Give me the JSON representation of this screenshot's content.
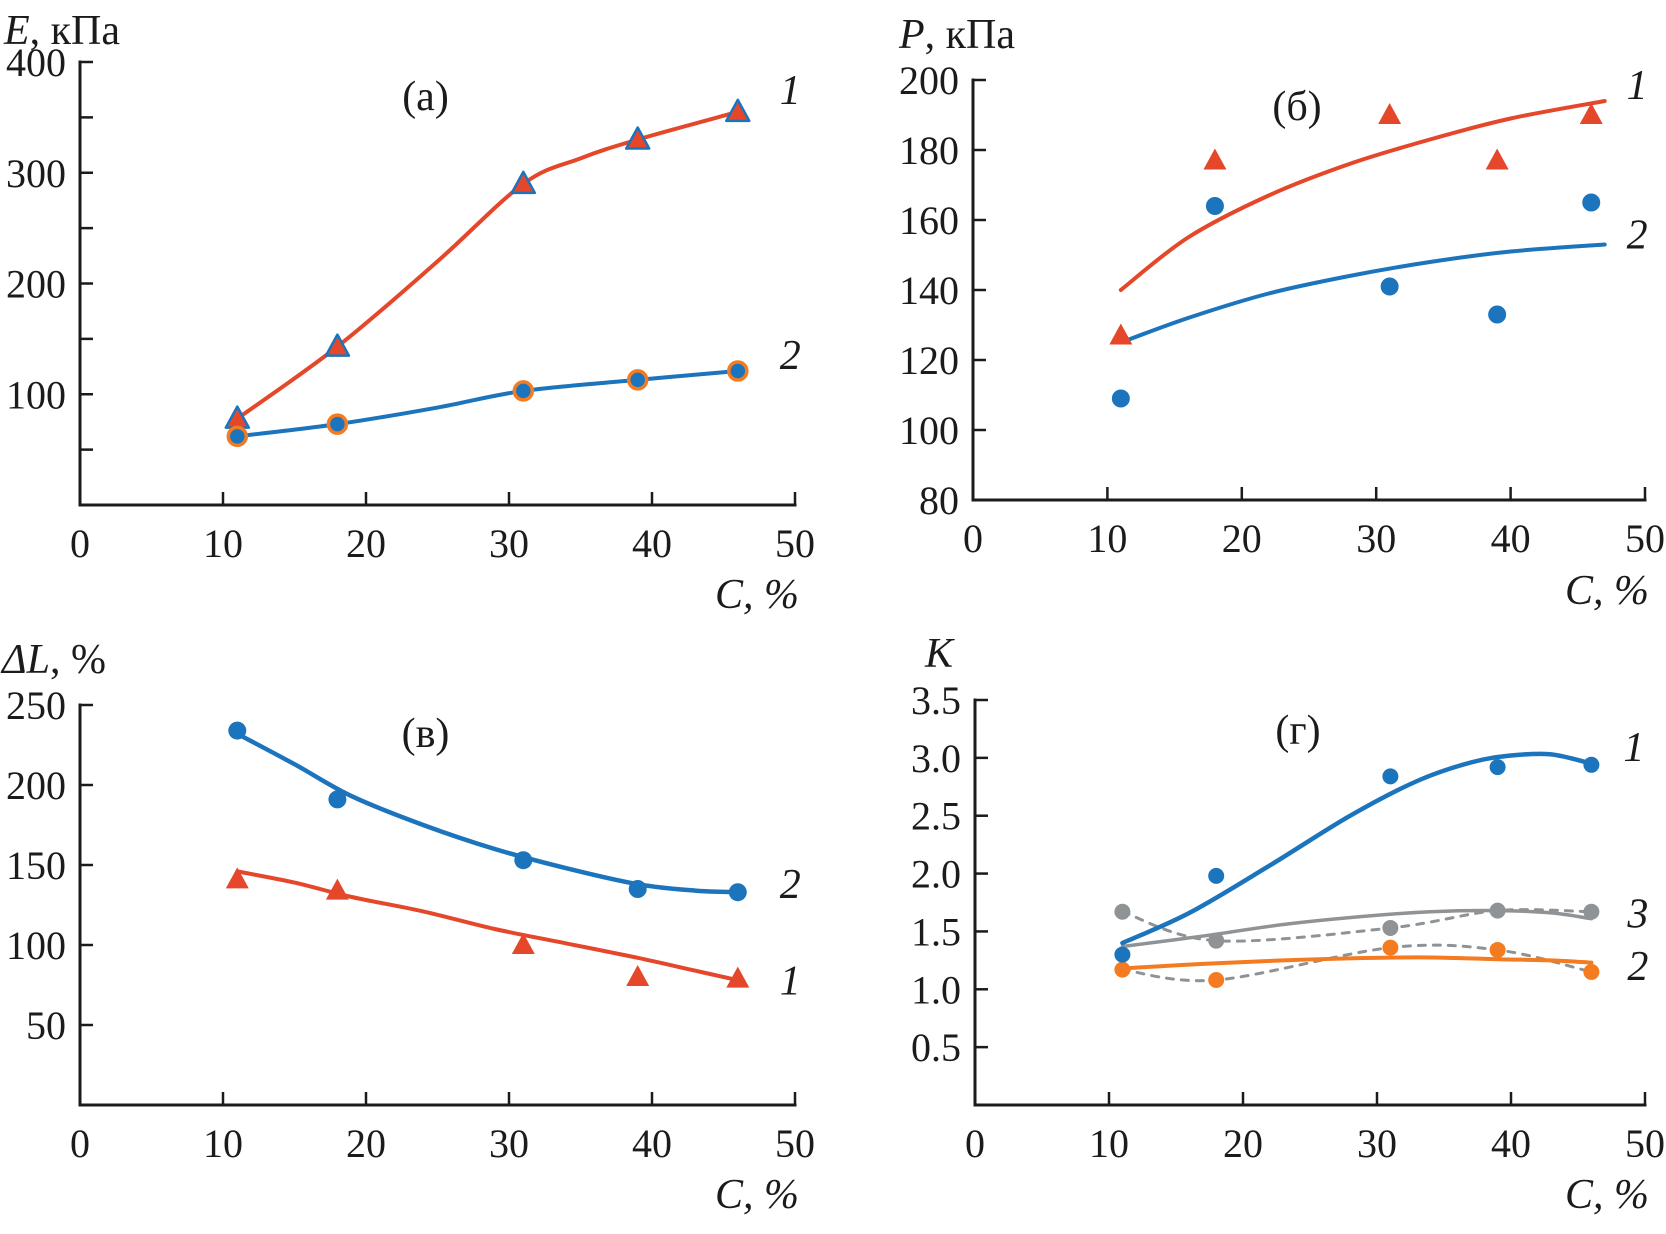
{
  "figure": {
    "background": "#ffffff",
    "description": "Four-panel scientific figure: mechanical properties vs filler concentration C, %"
  },
  "colors": {
    "red": "#e5472a",
    "blue": "#1c75bc",
    "orange": "#f47b20",
    "gray": "#8f9396",
    "axis": "#1b1b1b"
  },
  "chart_data": [
    {
      "id": "a",
      "type": "line",
      "tag": "(a)",
      "ylabel_var": "E",
      "ylabel_rest": ", кПа",
      "xlabel": "C, %",
      "x": {
        "min": 0,
        "max": 50,
        "ticks": [
          10,
          20,
          30,
          40,
          50
        ],
        "labels": [
          [
            0,
            "0"
          ],
          [
            10,
            "10"
          ],
          [
            20,
            "20"
          ],
          [
            30,
            "30"
          ],
          [
            40,
            "40"
          ],
          [
            50,
            "50"
          ]
        ]
      },
      "y": {
        "min": 0,
        "max": 400,
        "ticks": [
          50,
          100,
          150,
          200,
          250,
          300,
          350,
          400
        ],
        "labels": [
          [
            100,
            "100"
          ],
          [
            200,
            "200"
          ],
          [
            300,
            "300"
          ],
          [
            400,
            "400"
          ]
        ]
      },
      "series": [
        {
          "name": "series-1",
          "color": "red",
          "width": 4,
          "curve": [
            [
              11,
              78
            ],
            [
              18,
              143
            ],
            [
              25,
              220
            ],
            [
              31,
              290
            ],
            [
              35,
              313
            ],
            [
              39,
              330
            ],
            [
              46,
              355
            ]
          ],
          "points": [
            [
              11,
              78
            ],
            [
              18,
              143
            ],
            [
              31,
              290
            ],
            [
              39,
              330
            ],
            [
              46,
              355
            ]
          ],
          "marker": "triangle",
          "marker_fill": "red",
          "marker_stroke": "blue",
          "marker_stroke_width": 2.5,
          "label": {
            "text": "1",
            "x": 46,
            "y": 355,
            "dx": 42,
            "dy": -8
          }
        },
        {
          "name": "series-2",
          "color": "blue",
          "width": 4,
          "curve": [
            [
              11,
              62
            ],
            [
              18,
              73
            ],
            [
              25,
              88
            ],
            [
              31,
              103
            ],
            [
              39,
              113
            ],
            [
              46,
              121
            ]
          ],
          "points": [
            [
              11,
              62
            ],
            [
              18,
              73
            ],
            [
              31,
              103
            ],
            [
              39,
              113
            ],
            [
              46,
              121
            ]
          ],
          "marker": "circle",
          "marker_fill": "blue",
          "marker_stroke": "orange",
          "marker_stroke_width": 3.5,
          "marker_size": 9,
          "label": {
            "text": "2",
            "x": 46,
            "y": 121,
            "dx": 42,
            "dy": -2
          }
        }
      ]
    },
    {
      "id": "b",
      "type": "scatter",
      "tag": "(б)",
      "ylabel_var": "P",
      "ylabel_rest": ", кПа",
      "xlabel": "C, %",
      "x": {
        "min": 0,
        "max": 50,
        "ticks": [
          10,
          20,
          30,
          40,
          50
        ],
        "labels": [
          [
            0,
            "0"
          ],
          [
            10,
            "10"
          ],
          [
            20,
            "20"
          ],
          [
            30,
            "30"
          ],
          [
            40,
            "40"
          ],
          [
            50,
            "50"
          ]
        ]
      },
      "y": {
        "min": 80,
        "max": 200,
        "ticks": [
          100,
          120,
          140,
          160,
          180,
          200
        ],
        "labels": [
          [
            80,
            "80"
          ],
          [
            100,
            "100"
          ],
          [
            120,
            "120"
          ],
          [
            140,
            "140"
          ],
          [
            160,
            "160"
          ],
          [
            180,
            "180"
          ],
          [
            200,
            "200"
          ]
        ]
      },
      "series": [
        {
          "name": "series-1-fit",
          "color": "red",
          "width": 4,
          "curve": [
            [
              11,
              140
            ],
            [
              16,
              155
            ],
            [
              22,
              167
            ],
            [
              28,
              176
            ],
            [
              34,
              183
            ],
            [
              40,
              189
            ],
            [
              47,
              194
            ]
          ],
          "points": [
            [
              11,
              127
            ],
            [
              18,
              177
            ],
            [
              31,
              190
            ],
            [
              39,
              177
            ],
            [
              46,
              190
            ]
          ],
          "marker": "triangle",
          "marker_fill": "red",
          "marker_stroke": null,
          "label": {
            "text": "1",
            "x": 47,
            "y": 194,
            "dx": 22,
            "dy": -2
          }
        },
        {
          "name": "series-2-fit",
          "color": "blue",
          "width": 4,
          "curve": [
            [
              11,
              125
            ],
            [
              16,
              132
            ],
            [
              22,
              139
            ],
            [
              28,
              144
            ],
            [
              34,
              148
            ],
            [
              40,
              151
            ],
            [
              47,
              153
            ]
          ],
          "points": [
            [
              11,
              109
            ],
            [
              18,
              164
            ],
            [
              31,
              141
            ],
            [
              39,
              133
            ],
            [
              46,
              165
            ]
          ],
          "marker": "circle",
          "marker_fill": "blue",
          "marker_stroke": null,
          "marker_size": 9,
          "label": {
            "text": "2",
            "x": 47,
            "y": 153,
            "dx": 22,
            "dy": 4
          }
        }
      ]
    },
    {
      "id": "v",
      "type": "line",
      "tag": "(в)",
      "ylabel_var": "ΔL",
      "ylabel_rest": ", %",
      "xlabel": "C, %",
      "x": {
        "min": 0,
        "max": 50,
        "ticks": [
          10,
          20,
          30,
          40,
          50
        ],
        "labels": [
          [
            0,
            "0"
          ],
          [
            10,
            "10"
          ],
          [
            20,
            "20"
          ],
          [
            30,
            "30"
          ],
          [
            40,
            "40"
          ],
          [
            50,
            "50"
          ]
        ]
      },
      "y": {
        "min": 0,
        "max": 250,
        "ticks": [
          50,
          100,
          150,
          200,
          250
        ],
        "labels": [
          [
            50,
            "50"
          ],
          [
            100,
            "100"
          ],
          [
            150,
            "150"
          ],
          [
            200,
            "200"
          ],
          [
            250,
            "250"
          ]
        ]
      },
      "series": [
        {
          "name": "series-2-fit",
          "color": "blue",
          "width": 4.5,
          "curve": [
            [
              11,
              232
            ],
            [
              15,
              213
            ],
            [
              19,
              193
            ],
            [
              24,
              175
            ],
            [
              29,
              160
            ],
            [
              34,
              148
            ],
            [
              39,
              138
            ],
            [
              43,
              134
            ],
            [
              46,
              133
            ]
          ],
          "points": [
            [
              11,
              234
            ],
            [
              18,
              191
            ],
            [
              31,
              153
            ],
            [
              39,
              135
            ],
            [
              46,
              133
            ]
          ],
          "marker": "circle",
          "marker_fill": "blue",
          "marker_stroke": null,
          "marker_size": 9,
          "label": {
            "text": "2",
            "x": 46,
            "y": 133,
            "dx": 42,
            "dy": 6
          }
        },
        {
          "name": "series-1-fit",
          "color": "red",
          "width": 4,
          "curve": [
            [
              11,
              146
            ],
            [
              15,
              139
            ],
            [
              19,
              130
            ],
            [
              24,
              121
            ],
            [
              29,
              110
            ],
            [
              34,
              101
            ],
            [
              39,
              92
            ],
            [
              43,
              84
            ],
            [
              46,
              78
            ]
          ],
          "points": [
            [
              11,
              141
            ],
            [
              18,
              134
            ],
            [
              31,
              100
            ],
            [
              39,
              80
            ],
            [
              46,
              79
            ]
          ],
          "marker": "triangle",
          "marker_fill": "red",
          "marker_stroke": null,
          "label": {
            "text": "1",
            "x": 46,
            "y": 79,
            "dx": 42,
            "dy": 16
          }
        }
      ]
    },
    {
      "id": "g",
      "type": "line",
      "tag": "(г)",
      "ylabel_var": "K",
      "ylabel_rest": "",
      "xlabel": "C, %",
      "x": {
        "min": 0,
        "max": 50,
        "ticks": [
          10,
          20,
          30,
          40,
          50
        ],
        "labels": [
          [
            0,
            "0"
          ],
          [
            10,
            "10"
          ],
          [
            20,
            "20"
          ],
          [
            30,
            "30"
          ],
          [
            40,
            "40"
          ],
          [
            50,
            "50"
          ]
        ]
      },
      "y": {
        "min": 0,
        "max": 3.5,
        "ticks": [
          0.5,
          1,
          1.5,
          2,
          2.5,
          3,
          3.5
        ],
        "labels": [
          [
            0.5,
            "0.5"
          ],
          [
            1,
            "1.0"
          ],
          [
            1.5,
            "1.5"
          ],
          [
            2,
            "2.0"
          ],
          [
            2.5,
            "2.5"
          ],
          [
            3,
            "3.0"
          ],
          [
            3.5,
            "3.5"
          ]
        ]
      },
      "series": [
        {
          "name": "series-3-dashed",
          "color": "gray",
          "width": 3,
          "dash": true,
          "curve": [
            [
              11,
              1.67
            ],
            [
              18,
              1.42
            ],
            [
              31,
              1.53
            ],
            [
              39,
              1.68
            ],
            [
              46,
              1.67
            ]
          ],
          "points": []
        },
        {
          "name": "series-2-dashed",
          "color": "gray",
          "width": 3,
          "dash": true,
          "curve": [
            [
              11,
              1.17
            ],
            [
              18,
              1.08
            ],
            [
              31,
              1.36
            ],
            [
              39,
              1.34
            ],
            [
              46,
              1.15
            ]
          ],
          "points": []
        },
        {
          "name": "series-3-fit",
          "color": "gray",
          "width": 3.5,
          "curve": [
            [
              11,
              1.37
            ],
            [
              17,
              1.46
            ],
            [
              23,
              1.56
            ],
            [
              29,
              1.63
            ],
            [
              34,
              1.67
            ],
            [
              39,
              1.68
            ],
            [
              43,
              1.66
            ],
            [
              46,
              1.61
            ]
          ],
          "points": [
            [
              11,
              1.67
            ],
            [
              18,
              1.42
            ],
            [
              31,
              1.53
            ],
            [
              39,
              1.68
            ],
            [
              46,
              1.67
            ]
          ],
          "marker": "circle",
          "marker_fill": "gray",
          "marker_stroke": null,
          "marker_size": 8,
          "label": {
            "text": "3",
            "x": 46,
            "y": 1.62,
            "dx": 36,
            "dy": 10
          }
        },
        {
          "name": "series-2-fit",
          "color": "orange",
          "width": 4,
          "curve": [
            [
              11,
              1.18
            ],
            [
              17,
              1.22
            ],
            [
              23,
              1.25
            ],
            [
              29,
              1.27
            ],
            [
              34,
              1.275
            ],
            [
              39,
              1.26
            ],
            [
              43,
              1.25
            ],
            [
              46,
              1.23
            ]
          ],
          "points": [
            [
              11,
              1.17
            ],
            [
              18,
              1.08
            ],
            [
              31,
              1.36
            ],
            [
              39,
              1.34
            ],
            [
              46,
              1.15
            ]
          ],
          "marker": "circle",
          "marker_fill": "orange",
          "marker_stroke": null,
          "marker_size": 8,
          "label": {
            "text": "2",
            "x": 46,
            "y": 1.2,
            "dx": 36,
            "dy": 14
          }
        },
        {
          "name": "series-1-fit",
          "color": "blue",
          "width": 4.5,
          "curve": [
            [
              11,
              1.4
            ],
            [
              16,
              1.66
            ],
            [
              22,
              2.07
            ],
            [
              28,
              2.5
            ],
            [
              33,
              2.8
            ],
            [
              37,
              2.96
            ],
            [
              40,
              3.02
            ],
            [
              43,
              3.03
            ],
            [
              46,
              2.95
            ]
          ],
          "points": [
            [
              11,
              1.3
            ],
            [
              18,
              1.98
            ],
            [
              31,
              2.84
            ],
            [
              39,
              2.92
            ],
            [
              46,
              2.94
            ]
          ],
          "marker": "circle",
          "marker_fill": "blue",
          "marker_stroke": null,
          "marker_size": 8,
          "label": {
            "text": "1",
            "x": 46,
            "y": 2.94,
            "dx": 32,
            "dy": -4
          }
        }
      ]
    }
  ]
}
